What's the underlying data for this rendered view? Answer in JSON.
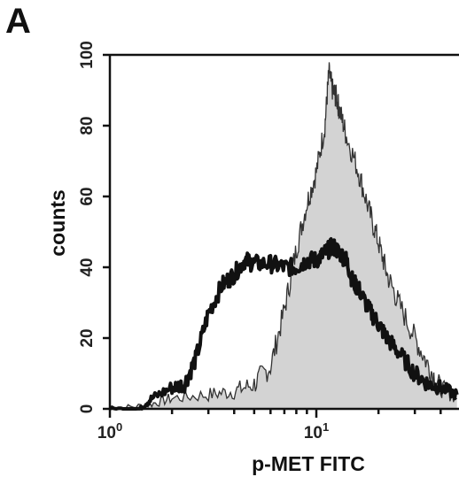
{
  "figure": {
    "panel_label": "A"
  },
  "chart_data": {
    "type": "area",
    "title": "",
    "xlabel": "p-MET FITC",
    "ylabel": "counts",
    "x_scale": "log",
    "xlim": [
      1,
      48
    ],
    "ylim": [
      0,
      100
    ],
    "y_ticks": [
      "0",
      "20",
      "40",
      "60",
      "80",
      "100"
    ],
    "y_tick_values": [
      0,
      20,
      40,
      60,
      80,
      100
    ],
    "x_ticks": [
      {
        "value": 1,
        "base": "10",
        "exp": "0"
      },
      {
        "value": 10,
        "base": "10",
        "exp": "1"
      }
    ],
    "series": [
      {
        "style": "filled",
        "fill": "#d3d3d3",
        "stroke": "#333333",
        "x": [
          1,
          1.5,
          2,
          3,
          4,
          5,
          6,
          7,
          8,
          9,
          10,
          11,
          11.5,
          12,
          12.5,
          13,
          14,
          16,
          18,
          20,
          22,
          25,
          30,
          35,
          40,
          48
        ],
        "y": [
          0,
          1,
          3,
          4,
          5,
          7,
          12,
          28,
          45,
          58,
          67,
          80,
          95,
          90,
          88,
          84,
          77,
          67,
          56,
          47,
          38,
          30,
          20,
          12,
          6,
          3
        ]
      },
      {
        "style": "line",
        "fill": "none",
        "stroke": "#111111",
        "x": [
          1,
          1.4,
          1.6,
          2,
          2.3,
          2.6,
          3,
          3.5,
          4,
          4.5,
          5,
          6,
          7,
          8,
          9,
          10,
          11,
          12,
          13,
          14,
          15,
          16,
          18,
          20,
          22,
          25,
          30,
          35,
          40,
          48
        ],
        "y": [
          0,
          0,
          3,
          6,
          7,
          14,
          27,
          35,
          38,
          42,
          41,
          41,
          40,
          40,
          42,
          42,
          44,
          46,
          44,
          42,
          36,
          34,
          28,
          24,
          20,
          16,
          10,
          7,
          6,
          4
        ]
      }
    ]
  }
}
